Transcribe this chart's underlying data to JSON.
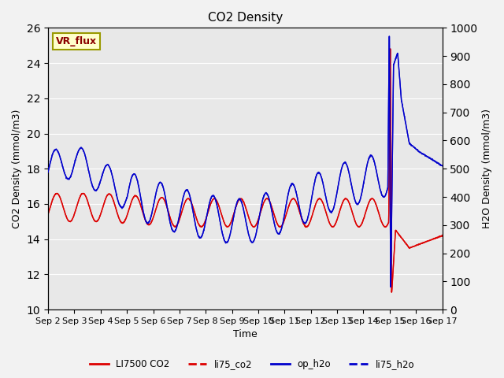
{
  "title": "CO2 Density",
  "xlabel": "Time",
  "ylabel_left": "CO2 Density (mmol/m3)",
  "ylabel_right": "H2O Density (mmol/m3)",
  "ylim_left": [
    10,
    26
  ],
  "ylim_right": [
    0,
    1000
  ],
  "yticks_left": [
    10,
    12,
    14,
    16,
    18,
    20,
    22,
    24,
    26
  ],
  "yticks_right": [
    0,
    100,
    200,
    300,
    400,
    500,
    600,
    700,
    800,
    900,
    1000
  ],
  "xtick_labels": [
    "Sep 2",
    "Sep 3",
    "Sep 4",
    "Sep 5",
    "Sep 6",
    "Sep 7",
    "Sep 8",
    "Sep 9",
    "Sep 10",
    "Sep 11",
    "Sep 12",
    "Sep 13",
    "Sep 14",
    "Sep 15",
    "Sep 16",
    "Sep 17"
  ],
  "bg_color": "#e8e8e8",
  "fig_bg_color": "#f2f2f2",
  "annotation_text": "VR_flux",
  "annotation_bg": "#ffffcc",
  "annotation_border": "#999900",
  "legend_entries": [
    "LI7500 CO2",
    "li75_co2",
    "op_h2o",
    "li75_h2o"
  ],
  "co2_color": "#dd0000",
  "h2o_color": "#0000cc",
  "line_lw": 1.0,
  "title_fontsize": 11,
  "axis_fontsize": 9,
  "tick_fontsize": 8
}
